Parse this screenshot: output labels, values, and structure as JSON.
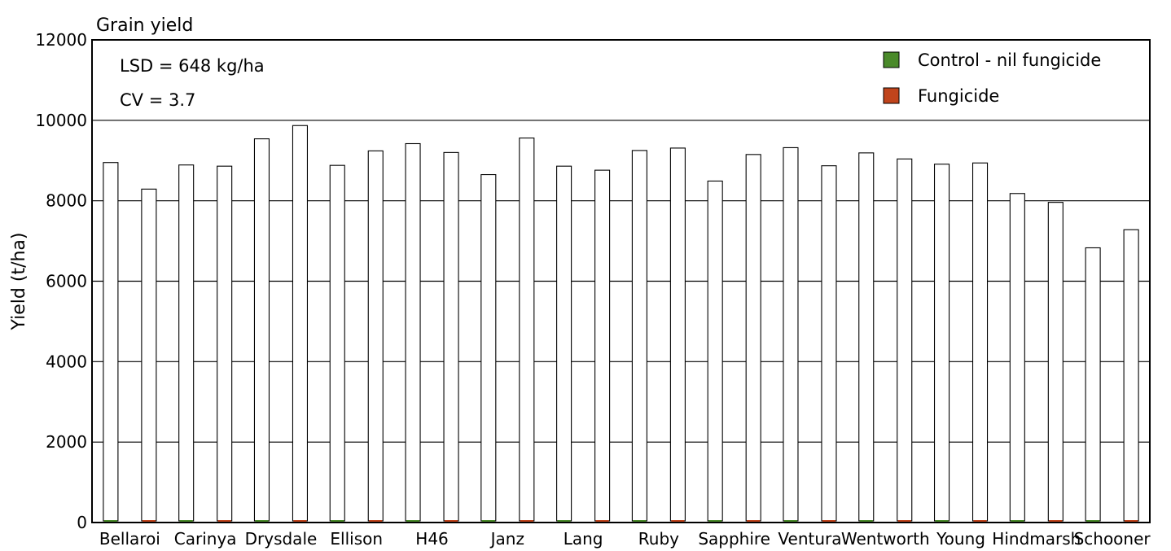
{
  "chart_data": {
    "type": "bar",
    "title": "Grain yield",
    "ylabel": "Yield (t/ha)",
    "xlabel": "",
    "ylim": [
      0,
      12000
    ],
    "yticks": [
      0,
      2000,
      4000,
      6000,
      8000,
      10000,
      12000
    ],
    "grid": true,
    "legend_position": "top-right",
    "annotations": [
      "LSD = 648 kg/ha",
      "CV = 3.7"
    ],
    "categories": [
      "Bellaroi",
      "Carinya",
      "Drysdale",
      "Ellison",
      "H46",
      "Janz",
      "Lang",
      "Ruby",
      "Sapphire",
      "Ventura",
      "Wentworth",
      "Young",
      "Hindmarsh",
      "Schooner"
    ],
    "series": [
      {
        "name": "Control - nil fungicide",
        "color": "#4a8a2a",
        "values": [
          8950,
          8890,
          9540,
          8880,
          9420,
          8650,
          8860,
          9250,
          8490,
          9320,
          9190,
          8910,
          8180,
          6830
        ]
      },
      {
        "name": "Fungicide",
        "color": "#c0441c",
        "values": [
          8290,
          8860,
          9870,
          9240,
          9200,
          9560,
          8760,
          9310,
          9150,
          8870,
          9040,
          8940,
          7960,
          7280
        ]
      }
    ]
  }
}
